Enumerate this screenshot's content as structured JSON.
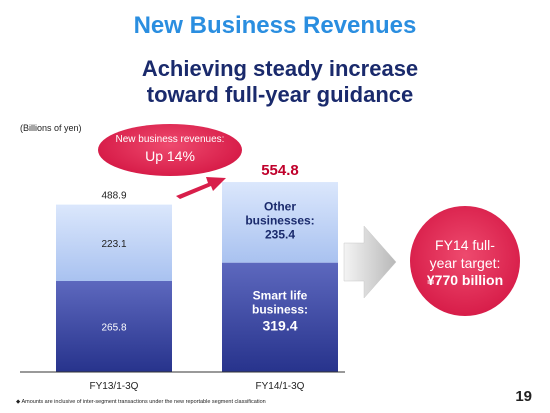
{
  "page": {
    "title": "New Business Revenues",
    "subtitle_line1": "Achieving steady increase",
    "subtitle_line2": "toward full-year guidance",
    "unit_label": "(Billions of yen)",
    "footnote": "◆  Amounts are inclusive of inter-segment transactions under the new reportable segment classification",
    "page_number": "19"
  },
  "callout": {
    "line1": "New business revenues:",
    "line2": "Up 14%"
  },
  "target": {
    "line1": "FY14 full-",
    "line2": "year target:",
    "line3": "¥770 billion"
  },
  "chart_data": {
    "type": "bar",
    "stacked": true,
    "categories": [
      "FY13/1-3Q",
      "FY14/1-3Q"
    ],
    "series": [
      {
        "values": [
          265.8,
          319.4
        ]
      },
      {
        "values": [
          223.1,
          235.4
        ]
      }
    ],
    "segment_labels": [
      {
        "bottom": "265.8",
        "top": "223.1"
      },
      {
        "bottom_line1": "Smart life",
        "bottom_line2": "business:",
        "bottom_value": "319.4",
        "top_line1": "Other",
        "top_line2": "businesses:",
        "top_value": "235.4"
      }
    ],
    "totals": [
      488.9,
      554.8
    ],
    "total_labels": [
      "488.9",
      "554.8"
    ],
    "colors": {
      "bottom": "#3d4aa6",
      "top": "#b8cef4",
      "total_highlight": "#c0002b",
      "callout": "#d81e4a"
    }
  }
}
